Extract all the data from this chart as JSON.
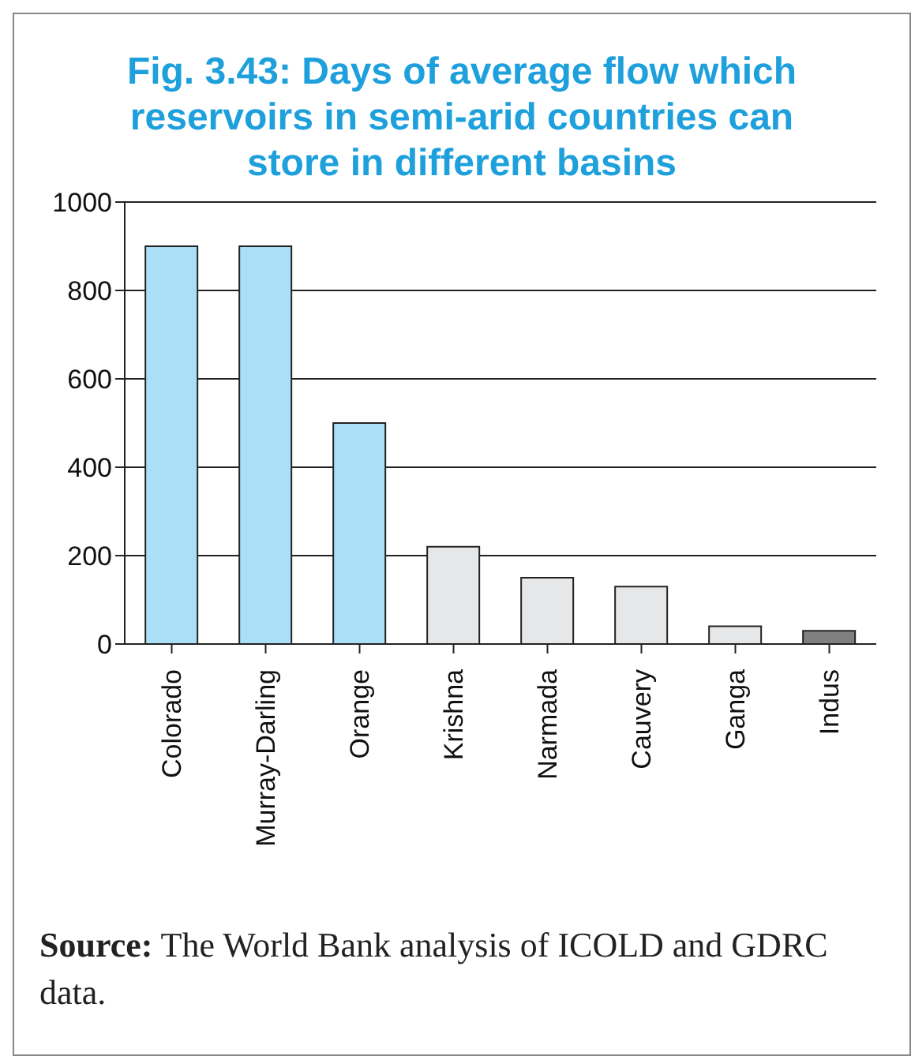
{
  "chart_data": {
    "type": "bar",
    "title": "Fig. 3.43:  Days of average flow which reservoirs in semi-arid countries can store in different basins",
    "categories": [
      "Colorado",
      "Murray-Darling",
      "Orange",
      "Krishna",
      "Narmada",
      "Cauvery",
      "Ganga",
      "Indus"
    ],
    "values": [
      900,
      900,
      500,
      220,
      150,
      130,
      40,
      30
    ],
    "colors": [
      "#aadff7",
      "#aadff7",
      "#aadff7",
      "#e6e7e8",
      "#e6e7e8",
      "#e6e7e8",
      "#e6e7e8",
      "#808080"
    ],
    "ylim": [
      0,
      1000
    ],
    "yticks": [
      0,
      200,
      400,
      600,
      800,
      1000
    ],
    "grid": "y",
    "annotations": [
      "Source:  The World Bank analysis of ICOLD and GDRC data."
    ]
  }
}
